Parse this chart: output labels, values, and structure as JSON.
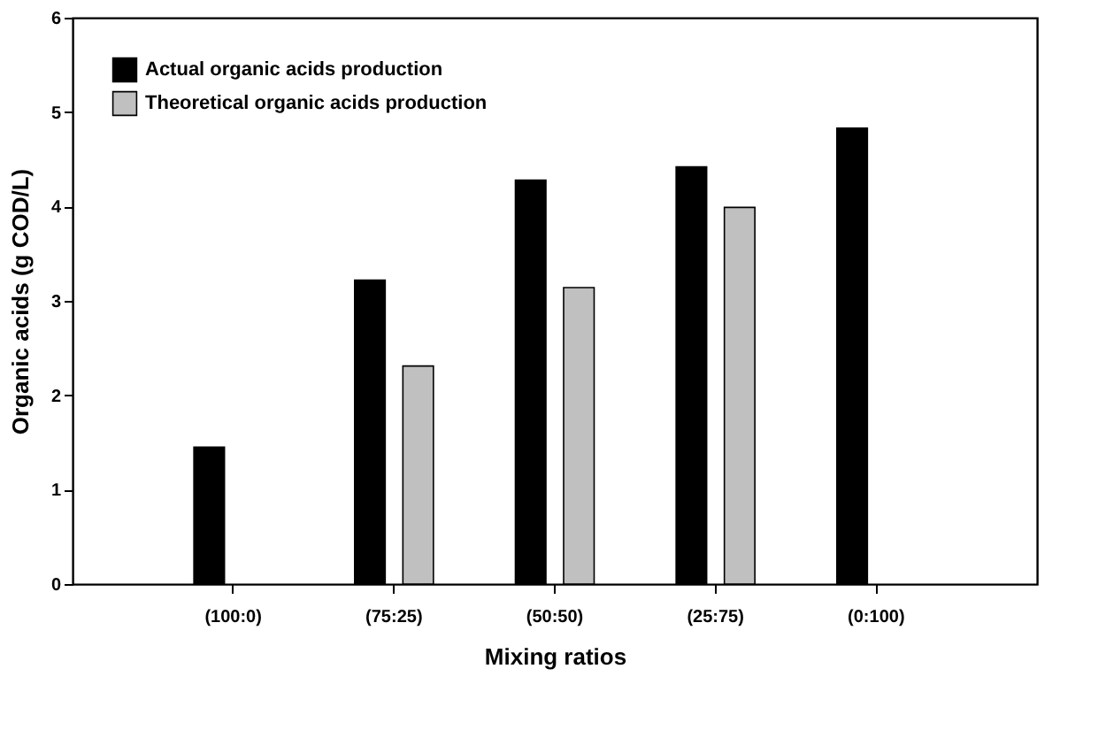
{
  "chart_data": {
    "type": "bar",
    "xlabel": "Mixing ratios",
    "ylabel": "Organic acids (g COD/L)",
    "categories": [
      "(100:0)",
      "(75:25)",
      "(50:50)",
      "(25:75)",
      "(0:100)"
    ],
    "series": [
      {
        "name": "Actual organic acids production",
        "color": "#000000",
        "values": [
          1.45,
          3.22,
          4.28,
          4.42,
          4.83
        ]
      },
      {
        "name": "Theoretical organic acids production",
        "color": "#c0c0c0",
        "values": [
          null,
          2.31,
          3.14,
          3.99,
          null
        ]
      }
    ],
    "ylim": [
      0,
      6
    ],
    "yticks": [
      0,
      1,
      2,
      3,
      4,
      5,
      6
    ],
    "grid": false,
    "legend": "top left"
  }
}
